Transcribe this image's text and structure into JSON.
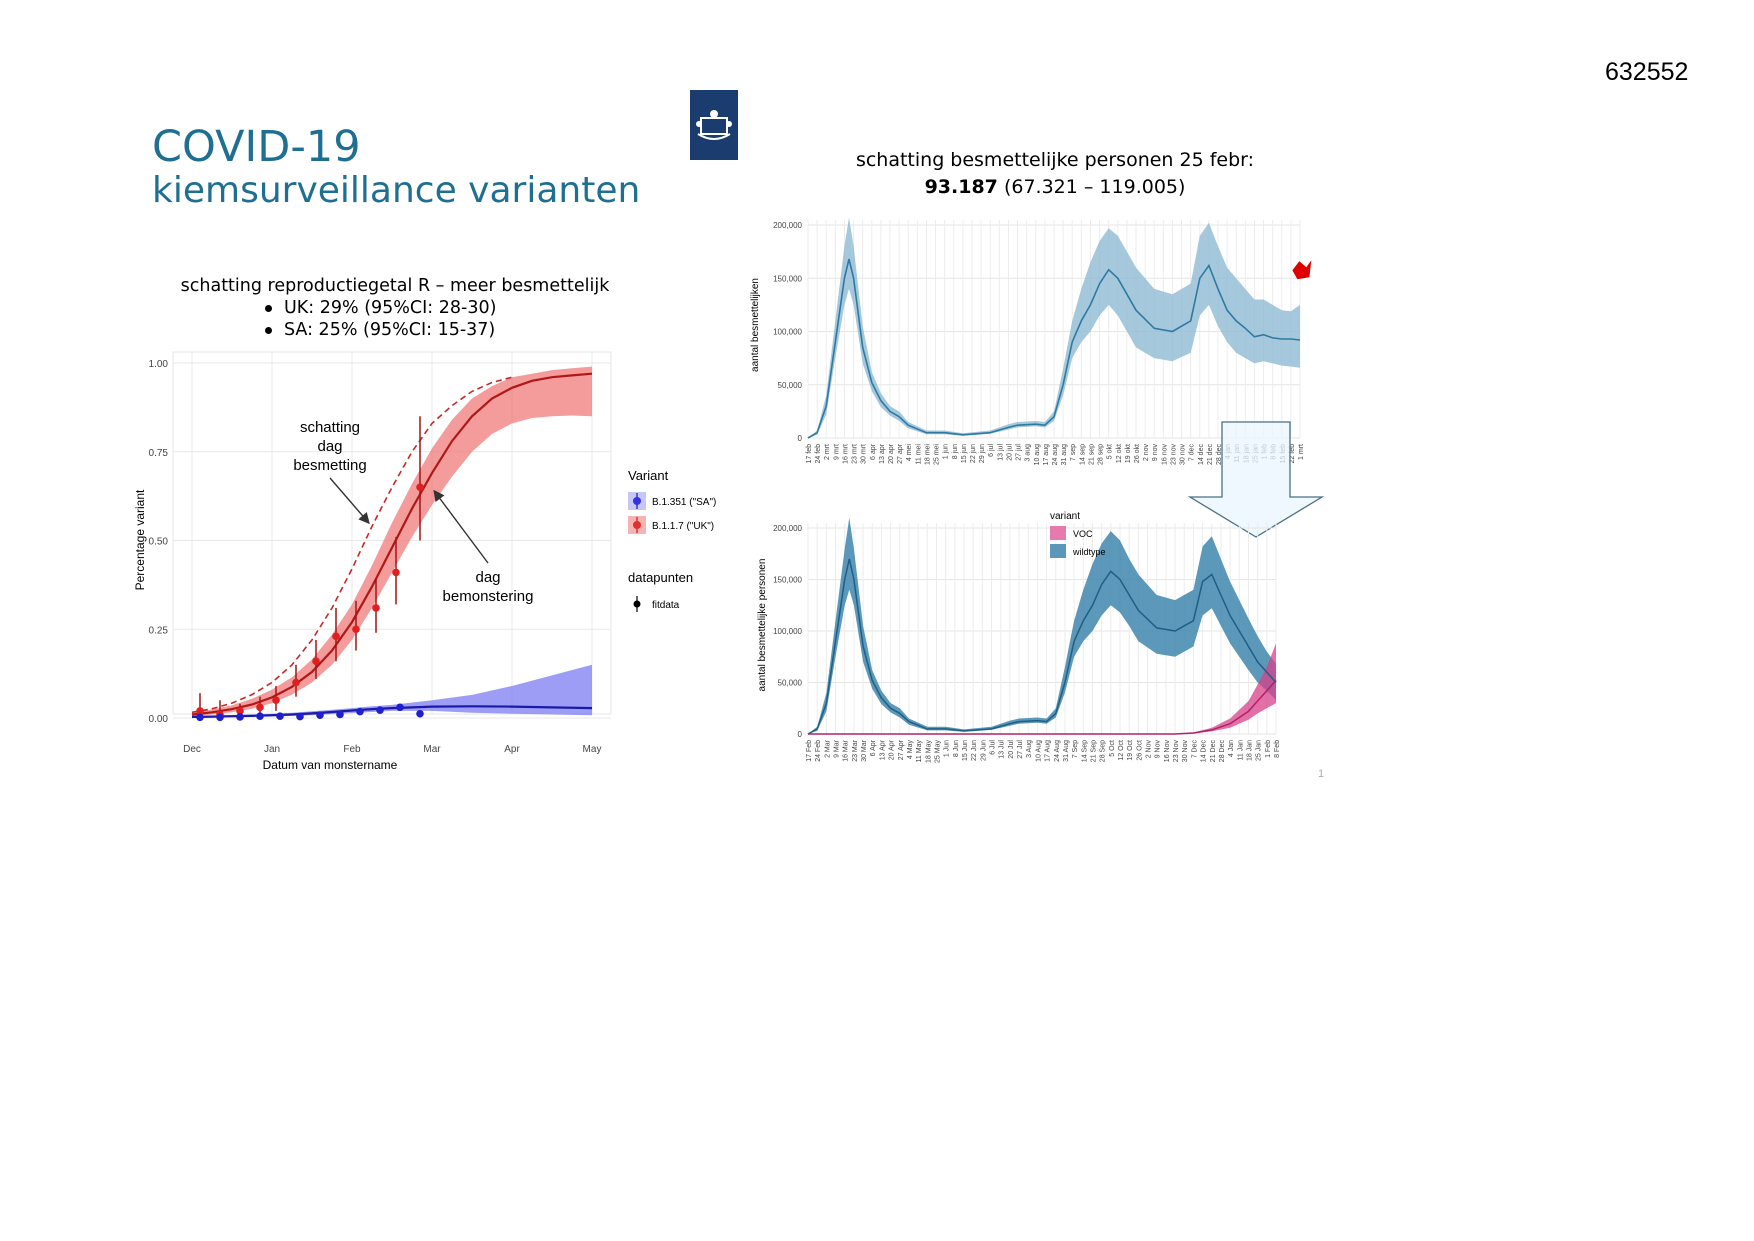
{
  "doc_number": "632552",
  "title": {
    "line1": "COVID-19",
    "line2": "kiemsurveillance varianten"
  },
  "logo": {
    "icon": "coat-of-arms-icon",
    "color": "#1b3c6f"
  },
  "page_marker": "1",
  "colors": {
    "uk": "#e03030",
    "sa": "#3333dd",
    "wildtype": "#4a8db4",
    "voc": "#d8408a",
    "title": "#1f6f93"
  },
  "chart_data": [
    {
      "type": "line",
      "title": "schatting reproductiegetal R – meer besmettelijk",
      "subtitle": [
        "UK: 29% (95%CI: 28-30)",
        "SA: 25% (95%CI: 15-37)"
      ],
      "xlabel": "Datum van monstername",
      "ylabel": "Percentage variant",
      "x_ticks": [
        "Dec",
        "Jan",
        "Feb",
        "Mar",
        "Apr",
        "May"
      ],
      "ylim": [
        0,
        1
      ],
      "y_ticks": [
        "0.00",
        "0.25",
        "0.50",
        "0.75",
        "1.00"
      ],
      "legend_variant_title": "Variant",
      "legend_points_title": "datapunten",
      "legend_points_label": "fitdata",
      "annotations": [
        {
          "text": [
            "schatting",
            "dag",
            "besmetting"
          ]
        },
        {
          "text": [
            "dag",
            "bemonstering"
          ]
        }
      ],
      "series": [
        {
          "name": "B.1.351 (\"SA\")",
          "color": "#3333dd",
          "x": [
            0,
            0.25,
            0.5,
            0.75,
            1.0,
            1.25,
            1.5,
            1.75,
            2.0,
            2.25,
            2.5,
            3,
            3.5,
            4,
            4.5,
            5
          ],
          "fit": [
            0.003,
            0.004,
            0.005,
            0.006,
            0.008,
            0.01,
            0.013,
            0.017,
            0.021,
            0.025,
            0.028,
            0.032,
            0.033,
            0.032,
            0.03,
            0.028
          ],
          "lower": [
            0.0,
            0.001,
            0.002,
            0.003,
            0.004,
            0.006,
            0.008,
            0.011,
            0.014,
            0.017,
            0.02,
            0.02,
            0.015,
            0.012,
            0.01,
            0.008
          ],
          "upper": [
            0.006,
            0.007,
            0.008,
            0.01,
            0.012,
            0.015,
            0.019,
            0.023,
            0.028,
            0.033,
            0.037,
            0.05,
            0.065,
            0.09,
            0.12,
            0.15
          ],
          "points": [
            [
              0.1,
              0.002
            ],
            [
              0.35,
              0.002
            ],
            [
              0.6,
              0.003
            ],
            [
              0.85,
              0.005
            ],
            [
              1.1,
              0.005
            ],
            [
              1.35,
              0.004
            ],
            [
              1.6,
              0.008
            ],
            [
              1.85,
              0.01
            ],
            [
              2.1,
              0.018
            ],
            [
              2.35,
              0.022
            ],
            [
              2.6,
              0.03
            ],
            [
              2.85,
              0.012
            ]
          ]
        },
        {
          "name": "B.1.1.7 (\"UK\")",
          "color": "#e03030",
          "x": [
            0,
            0.25,
            0.5,
            0.75,
            1.0,
            1.25,
            1.5,
            1.75,
            2.0,
            2.25,
            2.5,
            2.75,
            3.0,
            3.25,
            3.5,
            3.75,
            4.0,
            4.25,
            4.5,
            4.75,
            5.0
          ],
          "fit": [
            0.01,
            0.016,
            0.025,
            0.038,
            0.058,
            0.088,
            0.13,
            0.19,
            0.27,
            0.37,
            0.48,
            0.59,
            0.69,
            0.78,
            0.85,
            0.9,
            0.93,
            0.95,
            0.96,
            0.965,
            0.97
          ],
          "lower": [
            0.006,
            0.01,
            0.016,
            0.026,
            0.042,
            0.066,
            0.1,
            0.15,
            0.22,
            0.31,
            0.41,
            0.51,
            0.6,
            0.68,
            0.75,
            0.8,
            0.83,
            0.845,
            0.85,
            0.852,
            0.85
          ],
          "upper": [
            0.016,
            0.024,
            0.036,
            0.054,
            0.08,
            0.115,
            0.165,
            0.235,
            0.32,
            0.43,
            0.55,
            0.66,
            0.76,
            0.84,
            0.9,
            0.935,
            0.96,
            0.97,
            0.98,
            0.985,
            0.99
          ],
          "infection_estimate": [
            0.016,
            0.026,
            0.042,
            0.066,
            0.1,
            0.15,
            0.22,
            0.31,
            0.42,
            0.54,
            0.65,
            0.75,
            0.83,
            0.88,
            0.92,
            0.945,
            0.96
          ],
          "points": [
            [
              0.1,
              0.02
            ],
            [
              0.35,
              0.01
            ],
            [
              0.6,
              0.02
            ],
            [
              0.85,
              0.03
            ],
            [
              1.05,
              0.05
            ],
            [
              1.3,
              0.1
            ],
            [
              1.55,
              0.16
            ],
            [
              1.8,
              0.23
            ],
            [
              2.05,
              0.25
            ],
            [
              2.3,
              0.31
            ],
            [
              2.55,
              0.41
            ],
            [
              2.85,
              0.65
            ]
          ],
          "errors": [
            [
              0.0,
              0.07
            ],
            [
              0.0,
              0.05
            ],
            [
              0.005,
              0.04
            ],
            [
              0.01,
              0.06
            ],
            [
              0.02,
              0.09
            ],
            [
              0.06,
              0.15
            ],
            [
              0.11,
              0.22
            ],
            [
              0.16,
              0.31
            ],
            [
              0.19,
              0.33
            ],
            [
              0.24,
              0.39
            ],
            [
              0.32,
              0.51
            ],
            [
              0.5,
              0.85
            ]
          ]
        }
      ]
    },
    {
      "type": "area",
      "title_main": "schatting besmettelijke personen 25 febr:",
      "title_value": "93.187",
      "title_range": "(67.321 – 119.005)",
      "ylabel": "aantal besmettelijken",
      "ylim": [
        0,
        200000
      ],
      "y_ticks": [
        "0",
        "50,000",
        "100,000",
        "150,000",
        "200,000"
      ],
      "x_tick_labels": [
        "17 feb",
        "24 feb",
        "2 mrt",
        "9 mrt",
        "16 mrt",
        "23 mrt",
        "30 mrt",
        "6 apr",
        "13 apr",
        "20 apr",
        "27 apr",
        "4 mei",
        "11 mei",
        "18 mei",
        "25 mei",
        "1 jun",
        "8 jun",
        "15 jun",
        "22 jun",
        "29 jun",
        "6 jul",
        "13 jul",
        "20 jul",
        "27 jul",
        "3 aug",
        "10 aug",
        "17 aug",
        "24 aug",
        "31 aug",
        "7 sep",
        "14 sep",
        "21 sep",
        "28 sep",
        "5 okt",
        "12 okt",
        "19 okt",
        "26 okt",
        "2 nov",
        "9 nov",
        "16 nov",
        "23 nov",
        "30 nov",
        "7 dec",
        "14 dec",
        "21 dec",
        "28 dec",
        "4 jan",
        "11 jan",
        "18 jan",
        "25 jan",
        "1 feb",
        "8 feb",
        "15 feb",
        "22 feb",
        "1 mrt"
      ],
      "x_weeks": [
        0,
        1,
        2,
        3,
        4,
        4.5,
        5,
        6,
        7,
        8,
        9,
        10,
        11,
        13,
        15,
        17,
        20,
        22,
        23,
        25,
        26,
        27,
        28,
        29,
        30,
        31,
        32,
        33,
        34,
        35,
        36,
        38,
        40,
        42,
        43,
        44,
        45,
        46,
        47,
        48,
        49,
        50,
        51,
        52,
        53,
        54
      ],
      "estimate": [
        0,
        5000,
        30000,
        90000,
        150000,
        168000,
        150000,
        85000,
        52000,
        35000,
        25000,
        20000,
        12000,
        5000,
        5000,
        3000,
        5000,
        10000,
        12000,
        13000,
        12000,
        20000,
        50000,
        90000,
        110000,
        125000,
        145000,
        158000,
        150000,
        135000,
        120000,
        103000,
        100000,
        110000,
        150000,
        162000,
        140000,
        120000,
        110000,
        103000,
        95000,
        97000,
        94000,
        93000,
        93000,
        92000
      ],
      "lower": [
        0,
        3000,
        22000,
        75000,
        125000,
        140000,
        125000,
        70000,
        44000,
        29000,
        21000,
        16000,
        9000,
        3500,
        3500,
        2000,
        4000,
        8000,
        10000,
        11000,
        10000,
        16000,
        40000,
        75000,
        90000,
        100000,
        115000,
        125000,
        115000,
        100000,
        85000,
        75000,
        72000,
        80000,
        115000,
        125000,
        105000,
        90000,
        80000,
        75000,
        70000,
        72000,
        70000,
        68000,
        67000,
        66000
      ],
      "upper": [
        0,
        7000,
        40000,
        110000,
        180000,
        207000,
        180000,
        105000,
        62000,
        42000,
        30000,
        25000,
        15000,
        7000,
        7000,
        4500,
        7000,
        13000,
        15000,
        16000,
        15000,
        25000,
        65000,
        110000,
        140000,
        165000,
        185000,
        197000,
        190000,
        175000,
        160000,
        140000,
        135000,
        145000,
        190000,
        202000,
        180000,
        160000,
        150000,
        140000,
        130000,
        130000,
        125000,
        120000,
        119000,
        125000
      ],
      "arrow_marker_value": 150000
    },
    {
      "type": "area",
      "ylabel": "aantal besmettelijke personen",
      "ylim": [
        0,
        200000
      ],
      "y_ticks": [
        "0",
        "50,000",
        "100,000",
        "150,000",
        "200,000"
      ],
      "legend_title": "variant",
      "x_tick_labels": [
        "17 Feb",
        "24 Feb",
        "2 Mar",
        "9 Mar",
        "16 Mar",
        "23 Mar",
        "30 Mar",
        "6 Apr",
        "13 Apr",
        "20 Apr",
        "27 Apr",
        "4 May",
        "11 May",
        "18 May",
        "25 May",
        "1 Jun",
        "8 Jun",
        "15 Jun",
        "22 Jun",
        "29 Jun",
        "6 Jul",
        "13 Jul",
        "20 Jul",
        "27 Jul",
        "3 Aug",
        "10 Aug",
        "17 Aug",
        "24 Aug",
        "31 Aug",
        "7 Sep",
        "14 Sep",
        "21 Sep",
        "28 Sep",
        "5 Oct",
        "12 Oct",
        "19 Oct",
        "26 Oct",
        "2 Nov",
        "9 Nov",
        "16 Nov",
        "23 Nov",
        "30 Nov",
        "7 Dec",
        "14 Dec",
        "21 Dec",
        "28 Dec",
        "4 Jan",
        "11 Jan",
        "18 Jan",
        "25 Jan",
        "1 Feb",
        "8 Feb"
      ],
      "series": [
        {
          "name": "VOC",
          "color": "#d8408a",
          "x_weeks": [
            0,
            40,
            42,
            44,
            46,
            48,
            49,
            50,
            51
          ],
          "estimate": [
            0,
            0,
            1000,
            4000,
            10000,
            22000,
            32000,
            42000,
            52000
          ],
          "lower": [
            0,
            0,
            500,
            2500,
            6000,
            14000,
            20000,
            25000,
            30000
          ],
          "upper": [
            0,
            0,
            1500,
            6000,
            15000,
            32000,
            48000,
            65000,
            88000
          ]
        },
        {
          "name": "wildtype",
          "color": "#3f86ad",
          "x_weeks": [
            0,
            1,
            2,
            3,
            4,
            4.5,
            5,
            6,
            7,
            8,
            9,
            10,
            11,
            13,
            15,
            17,
            20,
            22,
            23,
            25,
            26,
            27,
            28,
            29,
            30,
            31,
            32,
            33,
            34,
            35,
            36,
            38,
            40,
            42,
            43,
            44,
            45,
            46,
            47,
            48,
            49,
            50,
            51
          ],
          "estimate": [
            0,
            5000,
            30000,
            90000,
            150000,
            170000,
            150000,
            85000,
            52000,
            35000,
            25000,
            20000,
            12000,
            5000,
            5000,
            3000,
            5000,
            10000,
            12000,
            13000,
            12000,
            20000,
            50000,
            90000,
            110000,
            125000,
            145000,
            158000,
            150000,
            135000,
            120000,
            103000,
            100000,
            110000,
            148000,
            155000,
            135000,
            115000,
            100000,
            85000,
            70000,
            60000,
            50000
          ],
          "lower": [
            0,
            3000,
            22000,
            75000,
            125000,
            140000,
            125000,
            70000,
            44000,
            29000,
            21000,
            16000,
            9000,
            3500,
            3500,
            2000,
            4000,
            8000,
            10000,
            11000,
            10000,
            16000,
            40000,
            75000,
            90000,
            100000,
            115000,
            125000,
            118000,
            105000,
            90000,
            78000,
            75000,
            85000,
            115000,
            122000,
            105000,
            88000,
            75000,
            62000,
            50000,
            42000,
            33000
          ],
          "upper": [
            0,
            7000,
            40000,
            110000,
            180000,
            210000,
            180000,
            105000,
            62000,
            42000,
            30000,
            25000,
            15000,
            7000,
            7000,
            4500,
            7000,
            13000,
            15000,
            16000,
            15000,
            25000,
            65000,
            110000,
            140000,
            165000,
            185000,
            197000,
            188000,
            170000,
            155000,
            135000,
            130000,
            140000,
            182000,
            192000,
            170000,
            148000,
            130000,
            112000,
            95000,
            80000,
            68000
          ]
        }
      ]
    }
  ]
}
